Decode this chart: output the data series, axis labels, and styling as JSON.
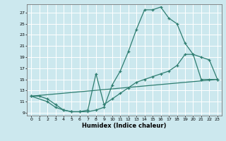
{
  "xlabel": "Humidex (Indice chaleur)",
  "background_color": "#cce8ee",
  "grid_color": "#ffffff",
  "line_color": "#2e7d70",
  "xlim": [
    -0.5,
    23.5
  ],
  "ylim": [
    8.5,
    28.5
  ],
  "xticks": [
    0,
    1,
    2,
    3,
    4,
    5,
    6,
    7,
    8,
    9,
    10,
    11,
    12,
    13,
    14,
    15,
    16,
    17,
    18,
    19,
    20,
    21,
    22,
    23
  ],
  "yticks": [
    9,
    11,
    13,
    15,
    17,
    19,
    21,
    23,
    25,
    27
  ],
  "line1_x": [
    0,
    1,
    2,
    3,
    4,
    5,
    6,
    7,
    8,
    9,
    10,
    11,
    12,
    13,
    14,
    15,
    16,
    17,
    18,
    19,
    20,
    21,
    22,
    23
  ],
  "line1_y": [
    12,
    12,
    11.5,
    10.5,
    9.5,
    9.2,
    9.2,
    9.2,
    9.5,
    10,
    14,
    16.5,
    20,
    24,
    27.5,
    27.5,
    28,
    26,
    25,
    21.5,
    19.5,
    19,
    18.5,
    15
  ],
  "line2_x": [
    0,
    2,
    3,
    4,
    5,
    6,
    7,
    8,
    9,
    10,
    11,
    12,
    13,
    14,
    15,
    16,
    17,
    18,
    19,
    20,
    21,
    22,
    23
  ],
  "line2_y": [
    12,
    11,
    10,
    9.5,
    9.2,
    9.2,
    9.5,
    16,
    10.5,
    11.5,
    12.5,
    13.5,
    14.5,
    15,
    15.5,
    16,
    16.5,
    17.5,
    19.5,
    19.5,
    15,
    15,
    15
  ],
  "line3_x": [
    0,
    23
  ],
  "line3_y": [
    12,
    15
  ]
}
